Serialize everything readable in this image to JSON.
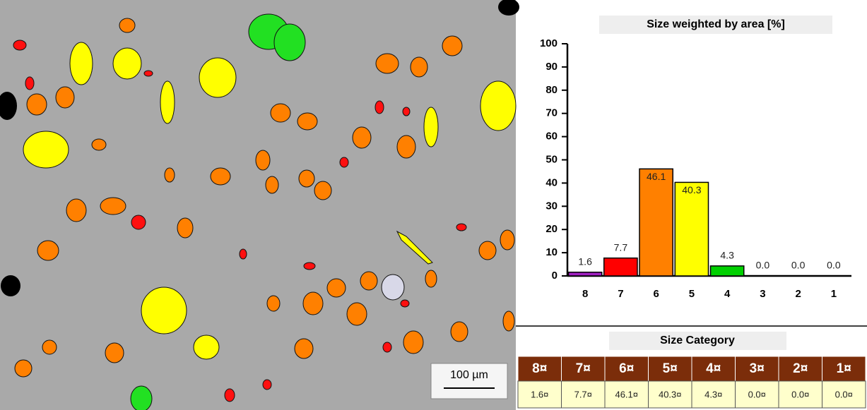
{
  "image": {
    "scale_bar": "100 µm"
  },
  "chart_data": {
    "type": "bar",
    "title": "Size weighted by area [%]",
    "categories": [
      "8",
      "7",
      "6",
      "5",
      "4",
      "3",
      "2",
      "1"
    ],
    "values": [
      1.6,
      7.7,
      46.1,
      40.3,
      4.3,
      0.0,
      0.0,
      0.0
    ],
    "value_labels": [
      "1.6",
      "7.7",
      "46.1",
      "40.3",
      "4.3",
      "0.0",
      "0.0",
      "0.0"
    ],
    "colors": [
      "#a020c0",
      "#ff0000",
      "#ff8000",
      "#ffff00",
      "#00d000",
      "#808080",
      "#808080",
      "#808080"
    ],
    "ylim": [
      0,
      100
    ],
    "yticks": [
      0,
      10,
      20,
      30,
      40,
      50,
      60,
      70,
      80,
      90,
      100
    ]
  },
  "table": {
    "title": "Size Category",
    "header": [
      "8¤",
      "7¤",
      "6¤",
      "5¤",
      "4¤",
      "3¤",
      "2¤",
      "1¤"
    ],
    "rows": [
      [
        "1.6¤",
        "7.7¤",
        "46.1¤",
        "40.3¤",
        "4.3¤",
        "0.0¤",
        "0.0¤",
        "0.0¤"
      ]
    ]
  }
}
